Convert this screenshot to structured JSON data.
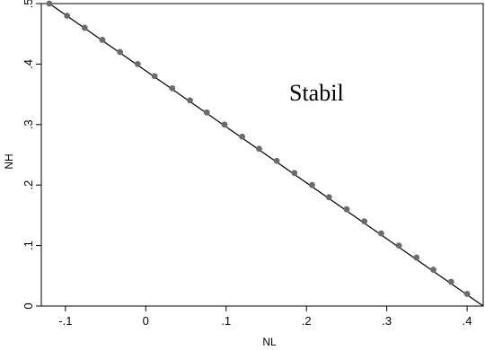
{
  "chart_data": {
    "type": "line",
    "title": "",
    "xlabel": "NL",
    "ylabel": "NH",
    "xlim": [
      -0.13,
      0.42
    ],
    "ylim": [
      0,
      0.5
    ],
    "xticks": [
      -0.1,
      0,
      0.1,
      0.2,
      0.3,
      0.4
    ],
    "xtick_labels": [
      "-.1",
      "0",
      ".1",
      ".2",
      ".3",
      ".4"
    ],
    "yticks": [
      0,
      0.1,
      0.2,
      0.3,
      0.4,
      0.5
    ],
    "ytick_labels": [
      "0",
      ".1",
      ".2",
      ".3",
      ".4",
      ".5"
    ],
    "grid": false,
    "annotation": "Stabil",
    "series": [
      {
        "type": "line",
        "line": [
          [
            -0.12,
            0.5
          ],
          [
            0.42,
            0.0
          ]
        ]
      },
      {
        "type": "scatter",
        "x": [
          -0.12,
          -0.098,
          -0.076,
          -0.054,
          -0.032,
          -0.01,
          0.011,
          0.033,
          0.055,
          0.076,
          0.098,
          0.12,
          0.141,
          0.163,
          0.185,
          0.207,
          0.228,
          0.25,
          0.272,
          0.293,
          0.315,
          0.337,
          0.358,
          0.38,
          0.4
        ],
        "y": [
          0.5,
          0.48,
          0.46,
          0.44,
          0.42,
          0.4,
          0.38,
          0.36,
          0.34,
          0.32,
          0.3,
          0.28,
          0.26,
          0.24,
          0.22,
          0.2,
          0.18,
          0.16,
          0.14,
          0.12,
          0.1,
          0.08,
          0.06,
          0.04,
          0.02
        ]
      }
    ],
    "colors": {
      "line": "#000000",
      "marker": "#6b6b6b"
    }
  }
}
